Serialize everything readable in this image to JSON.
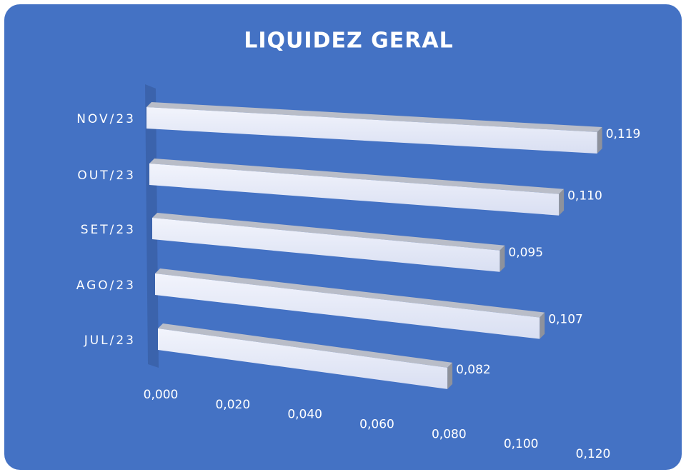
{
  "chart_data": {
    "type": "bar3d",
    "orientation": "horizontal",
    "title": "LIQUIDEZ GERAL",
    "categories": [
      "JUL/23",
      "AGO/23",
      "SET/23",
      "OUT/23",
      "NOV/23"
    ],
    "values": [
      0.082,
      0.107,
      0.095,
      0.11,
      0.119
    ],
    "value_labels": [
      "0,082",
      "0,107",
      "0,095",
      "0,110",
      "0,119"
    ],
    "color": "#e4e9f8",
    "xlim": [
      0,
      0.12
    ],
    "xticks": [
      {
        "value": 0,
        "label": "0,000"
      },
      {
        "value": 0.02,
        "label": "0,020"
      },
      {
        "value": 0.04,
        "label": "0,040"
      },
      {
        "value": 0.06,
        "label": "0,060"
      },
      {
        "value": 0.08,
        "label": "0,080"
      },
      {
        "value": 0.1,
        "label": "0,100"
      },
      {
        "value": 0.12,
        "label": "0,120"
      }
    ]
  }
}
